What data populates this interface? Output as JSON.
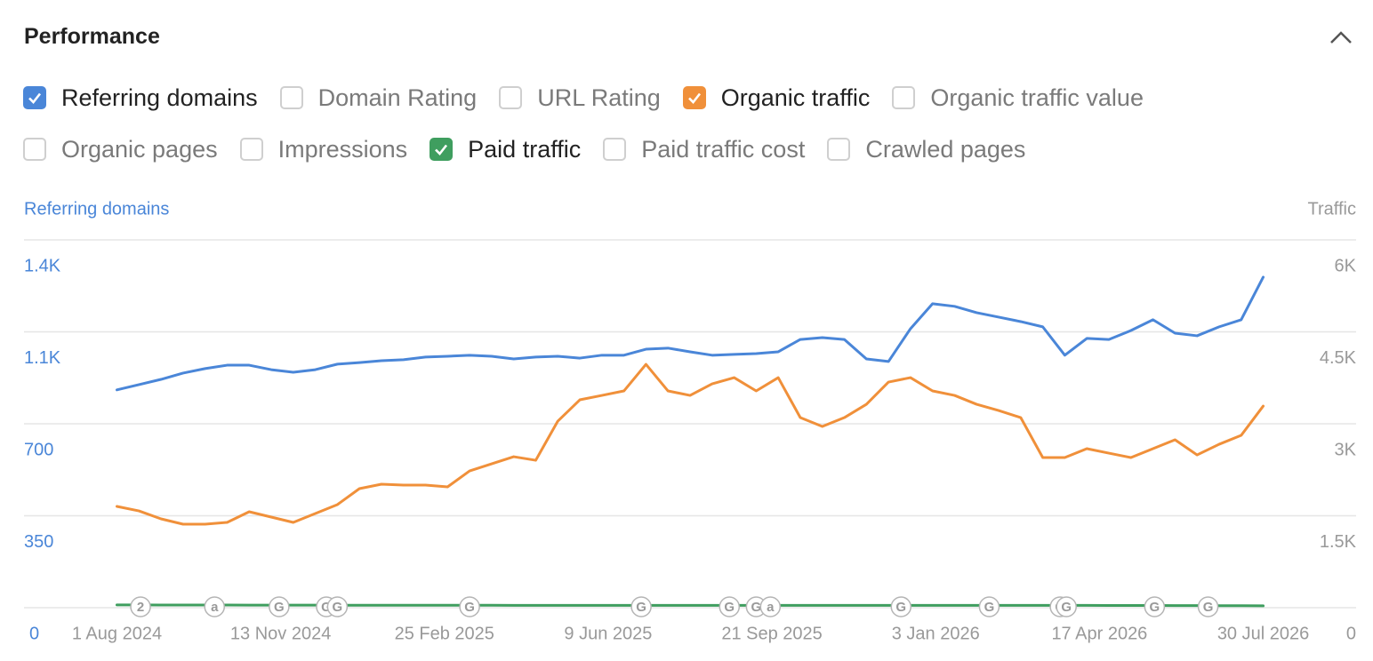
{
  "header": {
    "title": "Performance"
  },
  "checkboxes": [
    {
      "label": "Referring domains",
      "checked": true,
      "color": "#4a86d8"
    },
    {
      "label": "Domain Rating",
      "checked": false
    },
    {
      "label": "URL Rating",
      "checked": false
    },
    {
      "label": "Organic traffic",
      "checked": true,
      "color": "#f0903a"
    },
    {
      "label": "Organic traffic value",
      "checked": false
    },
    {
      "label": "Organic pages",
      "checked": false
    },
    {
      "label": "Impressions",
      "checked": false
    },
    {
      "label": "Paid traffic",
      "checked": true,
      "color": "#3f9e5f"
    },
    {
      "label": "Paid traffic cost",
      "checked": false
    },
    {
      "label": "Crawled pages",
      "checked": false
    }
  ],
  "chart_data": {
    "type": "line",
    "y_label": "Referring domains",
    "y2_label": "Traffic",
    "grid": true,
    "xlim": [
      "2024-06-03",
      "2026-09-27"
    ],
    "xticks": [
      {
        "value": "2024-08-01",
        "label": "1 Aug 2024"
      },
      {
        "value": "2024-11-13",
        "label": "13 Nov 2024"
      },
      {
        "value": "2025-02-25",
        "label": "25 Feb 2025"
      },
      {
        "value": "2025-06-09",
        "label": "9 Jun 2025"
      },
      {
        "value": "2025-09-21",
        "label": "21 Sep 2025"
      },
      {
        "value": "2026-01-03",
        "label": "3 Jan 2026"
      },
      {
        "value": "2026-04-17",
        "label": "17 Apr 2026"
      },
      {
        "value": "2026-07-30",
        "label": "30 Jul 2026"
      }
    ],
    "ylim": [
      0,
      1400
    ],
    "yticks": [
      0,
      350,
      700,
      {
        "value": 1050,
        "label": "1.1K"
      },
      {
        "value": 1400,
        "label": "1.4K"
      }
    ],
    "y2lim": [
      0,
      6000
    ],
    "y2ticks": [
      0,
      {
        "value": 1500,
        "label": "1.5K"
      },
      {
        "value": 3000,
        "label": "3K"
      },
      {
        "value": 4500,
        "label": "4.5K"
      },
      {
        "value": 6000,
        "label": "6K"
      }
    ],
    "x": [
      "2024-08-01",
      "2024-08-15",
      "2024-08-29",
      "2024-09-12",
      "2024-09-26",
      "2024-10-10",
      "2024-10-24",
      "2024-11-07",
      "2024-11-21",
      "2024-12-05",
      "2024-12-19",
      "2025-01-02",
      "2025-01-16",
      "2025-01-30",
      "2025-02-13",
      "2025-02-27",
      "2025-03-13",
      "2025-03-27",
      "2025-04-10",
      "2025-04-24",
      "2025-05-08",
      "2025-05-22",
      "2025-06-05",
      "2025-06-19",
      "2025-07-03",
      "2025-07-17",
      "2025-07-31",
      "2025-08-14",
      "2025-08-28",
      "2025-09-11",
      "2025-09-25",
      "2025-10-09",
      "2025-10-23",
      "2025-11-06",
      "2025-11-20",
      "2025-12-04",
      "2025-12-18",
      "2026-01-01",
      "2026-01-15",
      "2026-01-29",
      "2026-02-12",
      "2026-02-26",
      "2026-03-12",
      "2026-03-26",
      "2026-04-09",
      "2026-04-23",
      "2026-05-07",
      "2026-05-21",
      "2026-06-04",
      "2026-06-18",
      "2026-07-02",
      "2026-07-16",
      "2026-07-30"
    ],
    "series": [
      {
        "name": "Referring domains",
        "color": "#4a86d8",
        "values": [
          829,
          849,
          869,
          893,
          910,
          923,
          923,
          906,
          896,
          906,
          927,
          933,
          940,
          944,
          954,
          957,
          961,
          957,
          947,
          954,
          957,
          950,
          961,
          961,
          984,
          988,
          974,
          961,
          964,
          967,
          974,
          1021,
          1028,
          1021,
          947,
          937,
          1062,
          1157,
          1147,
          1123,
          1106,
          1089,
          1069,
          961,
          1025,
          1021,
          1055,
          1096,
          1045,
          1035,
          1069,
          1096,
          1258
        ]
      },
      {
        "name": "Organic traffic",
        "color": "#f0903a",
        "axis": "y2",
        "values": [
          1652,
          1579,
          1449,
          1362,
          1362,
          1391,
          1565,
          1478,
          1391,
          1536,
          1681,
          1942,
          2014,
          2000,
          2000,
          1971,
          2231,
          2347,
          2463,
          2405,
          3043,
          3391,
          3463,
          3536,
          3970,
          3536,
          3463,
          3651,
          3753,
          3536,
          3753,
          3101,
          2956,
          3101,
          3318,
          3680,
          3753,
          3536,
          3463,
          3318,
          3217,
          3101,
          2449,
          2449,
          2594,
          2521,
          2449,
          2594,
          2739,
          2492,
          2666,
          2811,
          3289
        ]
      },
      {
        "name": "Paid traffic",
        "color": "#3f9e5f",
        "axis": "y2",
        "values": [
          45,
          45,
          44,
          44,
          43,
          43,
          42,
          42,
          41,
          41,
          40,
          40,
          40,
          40,
          39,
          39,
          39,
          39,
          38,
          38,
          38,
          38,
          38,
          38,
          38,
          38,
          38,
          38,
          38,
          38,
          38,
          38,
          38,
          38,
          38,
          38,
          38,
          38,
          38,
          38,
          38,
          38,
          38,
          38,
          38,
          36,
          36,
          36,
          35,
          35,
          33,
          32,
          30
        ]
      }
    ],
    "annotations": [
      {
        "x": "2024-08-16",
        "label": "2"
      },
      {
        "x": "2024-10-02",
        "label": "a"
      },
      {
        "x": "2024-11-12",
        "label": "G"
      },
      {
        "x": "2024-12-12",
        "label": "G"
      },
      {
        "x": "2024-12-19",
        "label": "G"
      },
      {
        "x": "2025-03-13",
        "label": "G"
      },
      {
        "x": "2025-06-30",
        "label": "G"
      },
      {
        "x": "2025-08-25",
        "label": "G"
      },
      {
        "x": "2025-09-11",
        "label": "G"
      },
      {
        "x": "2025-09-20",
        "label": "a"
      },
      {
        "x": "2025-12-12",
        "label": "G"
      },
      {
        "x": "2026-02-06",
        "label": "G"
      },
      {
        "x": "2026-03-23",
        "label": "G"
      },
      {
        "x": "2026-03-27",
        "label": "G"
      },
      {
        "x": "2026-05-22",
        "label": "G"
      },
      {
        "x": "2026-06-25",
        "label": "G"
      }
    ]
  }
}
